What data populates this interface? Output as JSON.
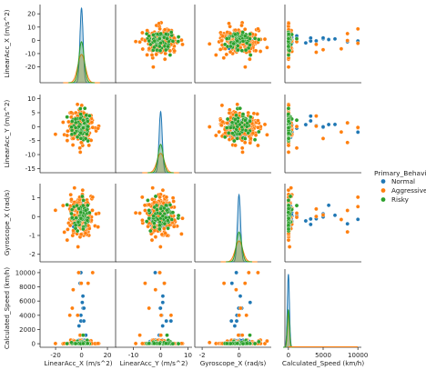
{
  "chart_data": {
    "type": "scatter",
    "kind": "pairplot",
    "hue_title": "Primary_Behavior",
    "variables": [
      {
        "label": "LinearAcc_X (m/s^2)",
        "range": [
          -32,
          27
        ],
        "ticks": [
          -20,
          0,
          20
        ],
        "yticks": [
          -20,
          -10,
          0,
          10,
          20
        ],
        "mode": "gauss"
      },
      {
        "label": "LinearAcc_Y (m/s^2)",
        "range": [
          -16.5,
          11.5
        ],
        "ticks": [
          -10,
          0,
          10
        ],
        "yticks": [
          -15,
          -10,
          -5,
          0,
          5,
          10
        ],
        "mode": "gauss"
      },
      {
        "label": "Gyroscope_X (rad/s)",
        "range": [
          -2.4,
          1.75
        ],
        "ticks": [
          -2,
          0
        ],
        "yticks": [
          -2,
          -1,
          0,
          1
        ],
        "mode": "gauss"
      },
      {
        "label": "Calculated_Speed (km/h)",
        "range": [
          -500,
          10500
        ],
        "ticks": [
          0,
          5000,
          10000
        ],
        "yticks": [
          0,
          2000,
          4000,
          6000,
          8000,
          10000
        ],
        "mode": "speed"
      }
    ],
    "series": [
      {
        "name": "Normal",
        "color": "#1f77b4",
        "count": 170,
        "spread": [
          1.8,
          1.6,
          0.25,
          1
        ]
      },
      {
        "name": "Aggressive",
        "color": "#ff7f0e",
        "count": 170,
        "spread": [
          5,
          3.2,
          0.55,
          1
        ]
      },
      {
        "name": "Risky",
        "color": "#2ca02c",
        "count": 60,
        "spread": [
          4,
          2.8,
          0.45,
          1
        ]
      }
    ],
    "speed_outliers": [
      1200,
      1800,
      2500,
      3200,
      4000,
      5000,
      5800,
      6700,
      7600,
      8500,
      9300,
      10000
    ],
    "kde_peaks": [
      [
        {
          "name": "Normal",
          "height": 1.0
        },
        {
          "name": "Aggressive",
          "height": 0.38
        },
        {
          "name": "Risky",
          "height": 0.55
        }
      ],
      [
        {
          "name": "Normal",
          "height": 0.82
        },
        {
          "name": "Aggressive",
          "height": 0.26
        },
        {
          "name": "Risky",
          "height": 0.38
        }
      ],
      [
        {
          "name": "Normal",
          "height": 0.9
        },
        {
          "name": "Aggressive",
          "height": 0.28
        },
        {
          "name": "Risky",
          "height": 0.4
        }
      ],
      [
        {
          "name": "Normal",
          "height": 0.98
        },
        {
          "name": "Aggressive",
          "height": 0.45
        },
        {
          "name": "Risky",
          "height": 0.5
        }
      ]
    ]
  }
}
